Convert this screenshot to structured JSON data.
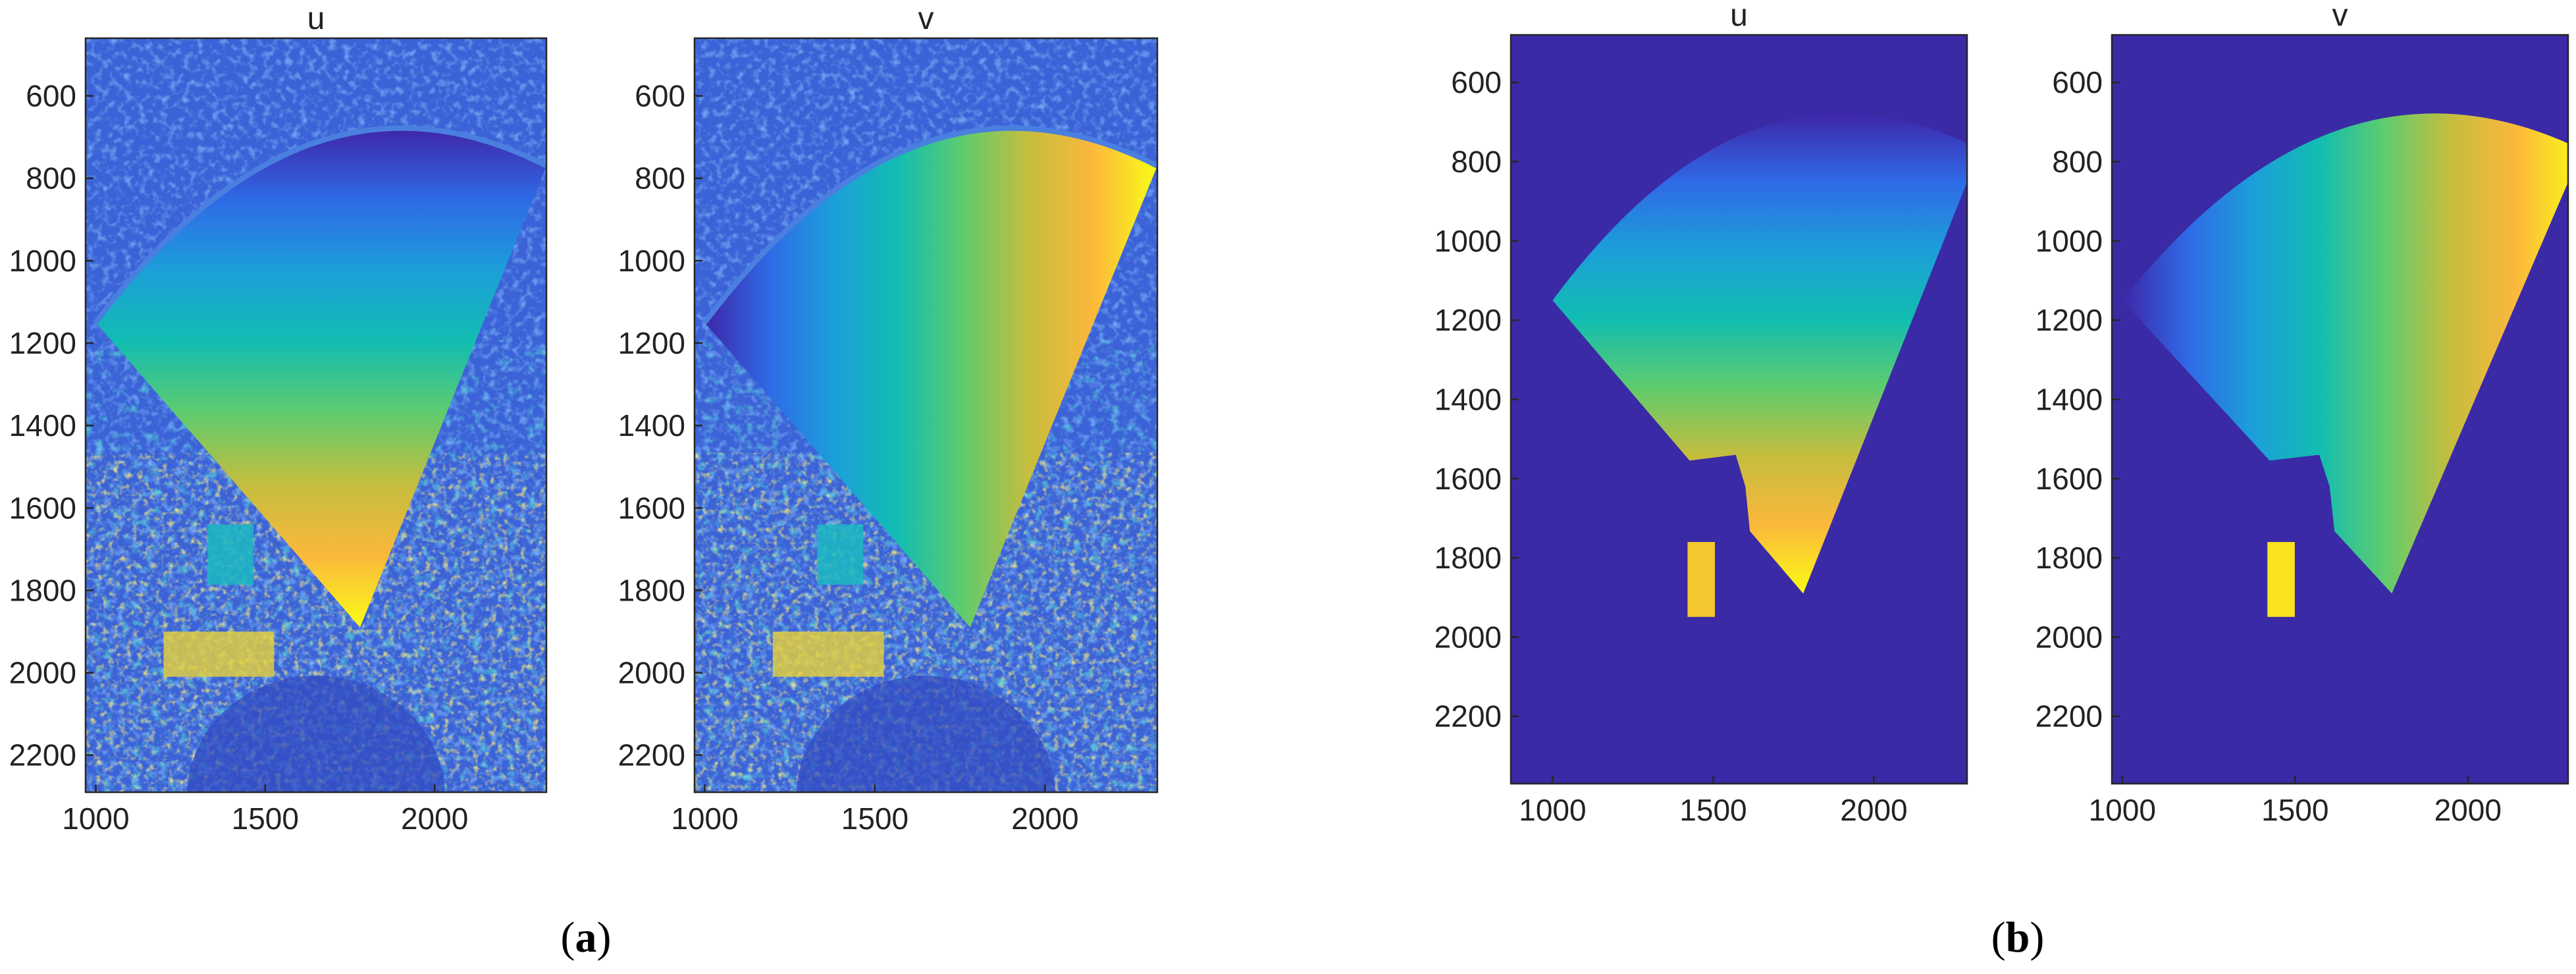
{
  "colors": {
    "background": "#3a2aa5",
    "colormap": [
      "#3e26a8",
      "#2f6ae6",
      "#1c9fd9",
      "#12bdb1",
      "#5fcc6e",
      "#c5bd3e",
      "#fbb83c",
      "#f9fb16"
    ]
  },
  "panels": [
    {
      "id": "a",
      "caption_open": "(",
      "caption_letter": "a",
      "caption_close": ")"
    },
    {
      "id": "b",
      "caption_open": "(",
      "caption_letter": "b",
      "caption_close": ")"
    }
  ],
  "chart_data": [
    {
      "panel": "a",
      "type": "heatmap",
      "title": "u",
      "variant": "noisy",
      "xlim": [
        970,
        2330
      ],
      "ylim": [
        2290,
        460
      ],
      "xticks": [
        1000,
        1500,
        2000
      ],
      "yticks": [
        600,
        800,
        1000,
        1200,
        1400,
        1600,
        1800,
        2000,
        2200
      ],
      "y_axis_direction": "reverse",
      "content": "u displacement map, fan-shaped sector from about x 970–2330, y 680–1900, values rising from top to bottom; noisy background"
    },
    {
      "panel": "a",
      "type": "heatmap",
      "title": "v",
      "variant": "noisy",
      "xlim": [
        970,
        2330
      ],
      "ylim": [
        2290,
        460
      ],
      "xticks": [
        1000,
        1500,
        2000
      ],
      "yticks": [
        600,
        800,
        1000,
        1200,
        1400,
        1600,
        1800,
        2000,
        2200
      ],
      "y_axis_direction": "reverse",
      "content": "v displacement map, fan-shaped sector, values rising from left to right; noisy background"
    },
    {
      "panel": "b",
      "type": "heatmap",
      "title": "u",
      "variant": "clean",
      "xlim": [
        870,
        2290
      ],
      "ylim": [
        2370,
        480
      ],
      "xticks": [
        1000,
        1500,
        2000
      ],
      "yticks": [
        600,
        800,
        1000,
        1200,
        1400,
        1600,
        1800,
        2000,
        2200
      ],
      "y_axis_direction": "reverse",
      "content": "u displacement map, masked fan sector on uniform background, values rising from top to bottom"
    },
    {
      "panel": "b",
      "type": "heatmap",
      "title": "v",
      "variant": "clean",
      "xlim": [
        970,
        2290
      ],
      "ylim": [
        2370,
        480
      ],
      "xticks": [
        1000,
        1500,
        2000
      ],
      "yticks": [
        600,
        800,
        1000,
        1200,
        1400,
        1600,
        1800,
        2000,
        2200
      ],
      "y_axis_direction": "reverse",
      "content": "v displacement map, masked fan sector on uniform background, values rising from left to right"
    }
  ]
}
